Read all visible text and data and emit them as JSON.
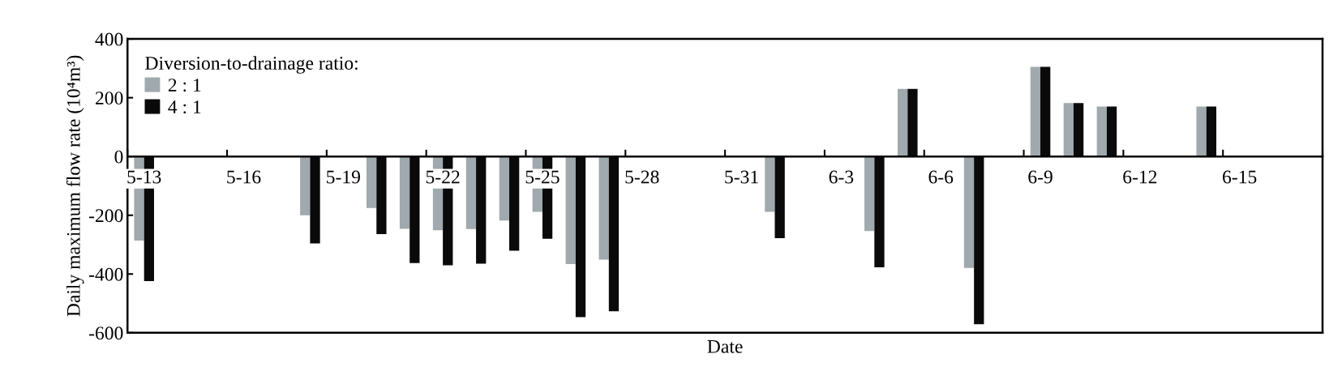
{
  "chart_data": {
    "type": "bar",
    "xlabel": "Date",
    "ylabel": "Daily maximum flow rate (10⁴m³)",
    "legend_title": "Diversion-to-drainage ratio:",
    "categories": [
      "5-13",
      null,
      null,
      "5-16",
      null,
      null,
      "5-19",
      null,
      null,
      "5-22",
      null,
      null,
      "5-25",
      null,
      null,
      "5-28",
      null,
      null,
      "5-31",
      null,
      null,
      "6-3",
      null,
      null,
      "6-6",
      null,
      null,
      "6-9",
      null,
      null,
      "6-12",
      null,
      null,
      "6-15",
      null,
      null
    ],
    "series": [
      {
        "name": "2 : 1",
        "color": "#a0a9ad",
        "values": [
          -286,
          0,
          0,
          0,
          0,
          -200,
          0,
          -175,
          -246,
          -251,
          -247,
          -218,
          -188,
          -366,
          -351,
          0,
          0,
          0,
          0,
          -188,
          0,
          0,
          -254,
          230,
          0,
          -379,
          0,
          305,
          182,
          170,
          0,
          0,
          170,
          0,
          0,
          0
        ]
      },
      {
        "name": "4 : 1",
        "color": "#0a0a0a",
        "values": [
          -424,
          0,
          0,
          0,
          0,
          -296,
          0,
          -264,
          -363,
          -370,
          -365,
          -321,
          -280,
          -547,
          -527,
          0,
          0,
          0,
          0,
          -278,
          0,
          0,
          -377,
          230,
          0,
          -571,
          0,
          305,
          182,
          170,
          0,
          0,
          170,
          0,
          0,
          0
        ]
      }
    ],
    "ylim": [
      -600,
      400
    ],
    "yticks": [
      -600,
      -400,
      -200,
      0,
      200,
      400
    ],
    "grid": false,
    "legend": "top left"
  }
}
